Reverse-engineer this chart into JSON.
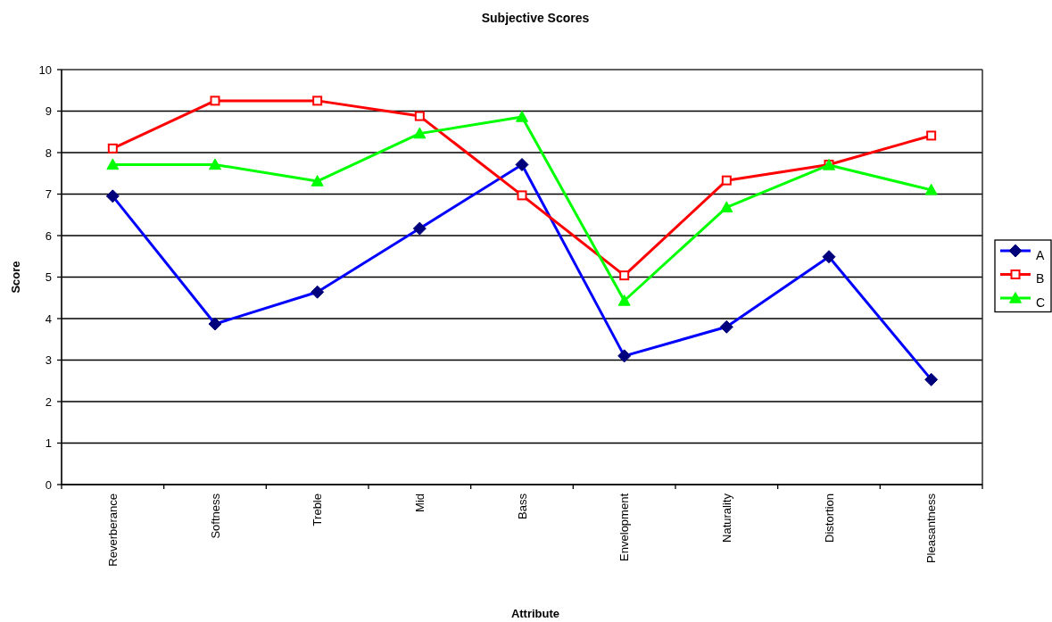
{
  "chart_data": {
    "type": "line",
    "title": "Subjective Scores",
    "xlabel": "Attribute",
    "ylabel": "Score",
    "categories": [
      "Reverberance",
      "Softness",
      "Treble",
      "Mid",
      "Bass",
      "Envelopment",
      "Naturality",
      "Distortion",
      "Pleasantness"
    ],
    "series": [
      {
        "name": "A",
        "color": "#0000ff",
        "marker": "diamond",
        "values": [
          6.95,
          3.87,
          4.64,
          6.17,
          7.71,
          3.1,
          3.8,
          5.49,
          2.53
        ]
      },
      {
        "name": "B",
        "color": "#ff0000",
        "marker": "square",
        "values": [
          8.1,
          9.25,
          9.25,
          8.88,
          6.97,
          5.04,
          7.33,
          7.71,
          8.41
        ]
      },
      {
        "name": "C",
        "color": "#00ff00",
        "marker": "triangle",
        "values": [
          7.71,
          7.71,
          7.31,
          8.46,
          8.86,
          4.43,
          6.68,
          7.7,
          7.1
        ]
      }
    ],
    "ylim": [
      0,
      10
    ],
    "yticks": [
      0,
      1,
      2,
      3,
      4,
      5,
      6,
      7,
      8,
      9,
      10
    ],
    "grid": "y",
    "legend": "right",
    "line_style": "solid"
  }
}
